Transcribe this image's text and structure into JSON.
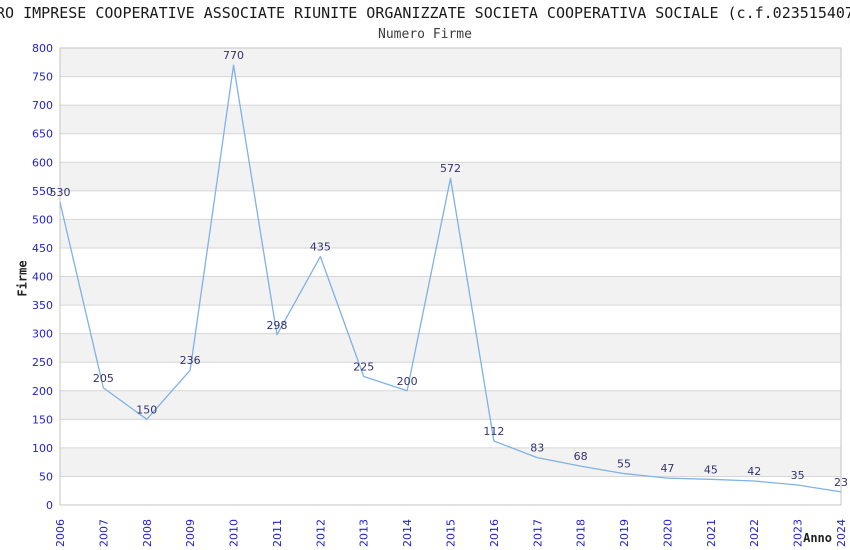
{
  "title": "RO IMPRESE COOPERATIVE ASSOCIATE RIUNITE ORGANIZZATE SOCIETA COOPERATIVA SOCIALE (c.f.023515407",
  "subtitle": "Numero Firme",
  "chart_data": {
    "type": "line",
    "title": "Numero Firme",
    "x": [
      "2006",
      "2007",
      "2008",
      "2009",
      "2010",
      "2011",
      "2012",
      "2013",
      "2014",
      "2015",
      "2016",
      "2017",
      "2018",
      "2019",
      "2020",
      "2021",
      "2022",
      "2023",
      "2024"
    ],
    "values": [
      530,
      205,
      150,
      236,
      770,
      298,
      435,
      225,
      200,
      572,
      112,
      83,
      68,
      55,
      47,
      45,
      42,
      35,
      23
    ],
    "xlabel": "Anno",
    "ylabel": "Firme",
    "ylim": [
      0,
      800
    ],
    "ytick_step": 50,
    "legend": "none",
    "grid": "horizontal-bands",
    "colors": {
      "line": "#7fb2e5",
      "point_label": "#333370",
      "tick_label": "#2222cc",
      "band": "#f2f2f2",
      "gridline": "#d6d6d6",
      "plot_border": "#c4c4c4"
    }
  }
}
